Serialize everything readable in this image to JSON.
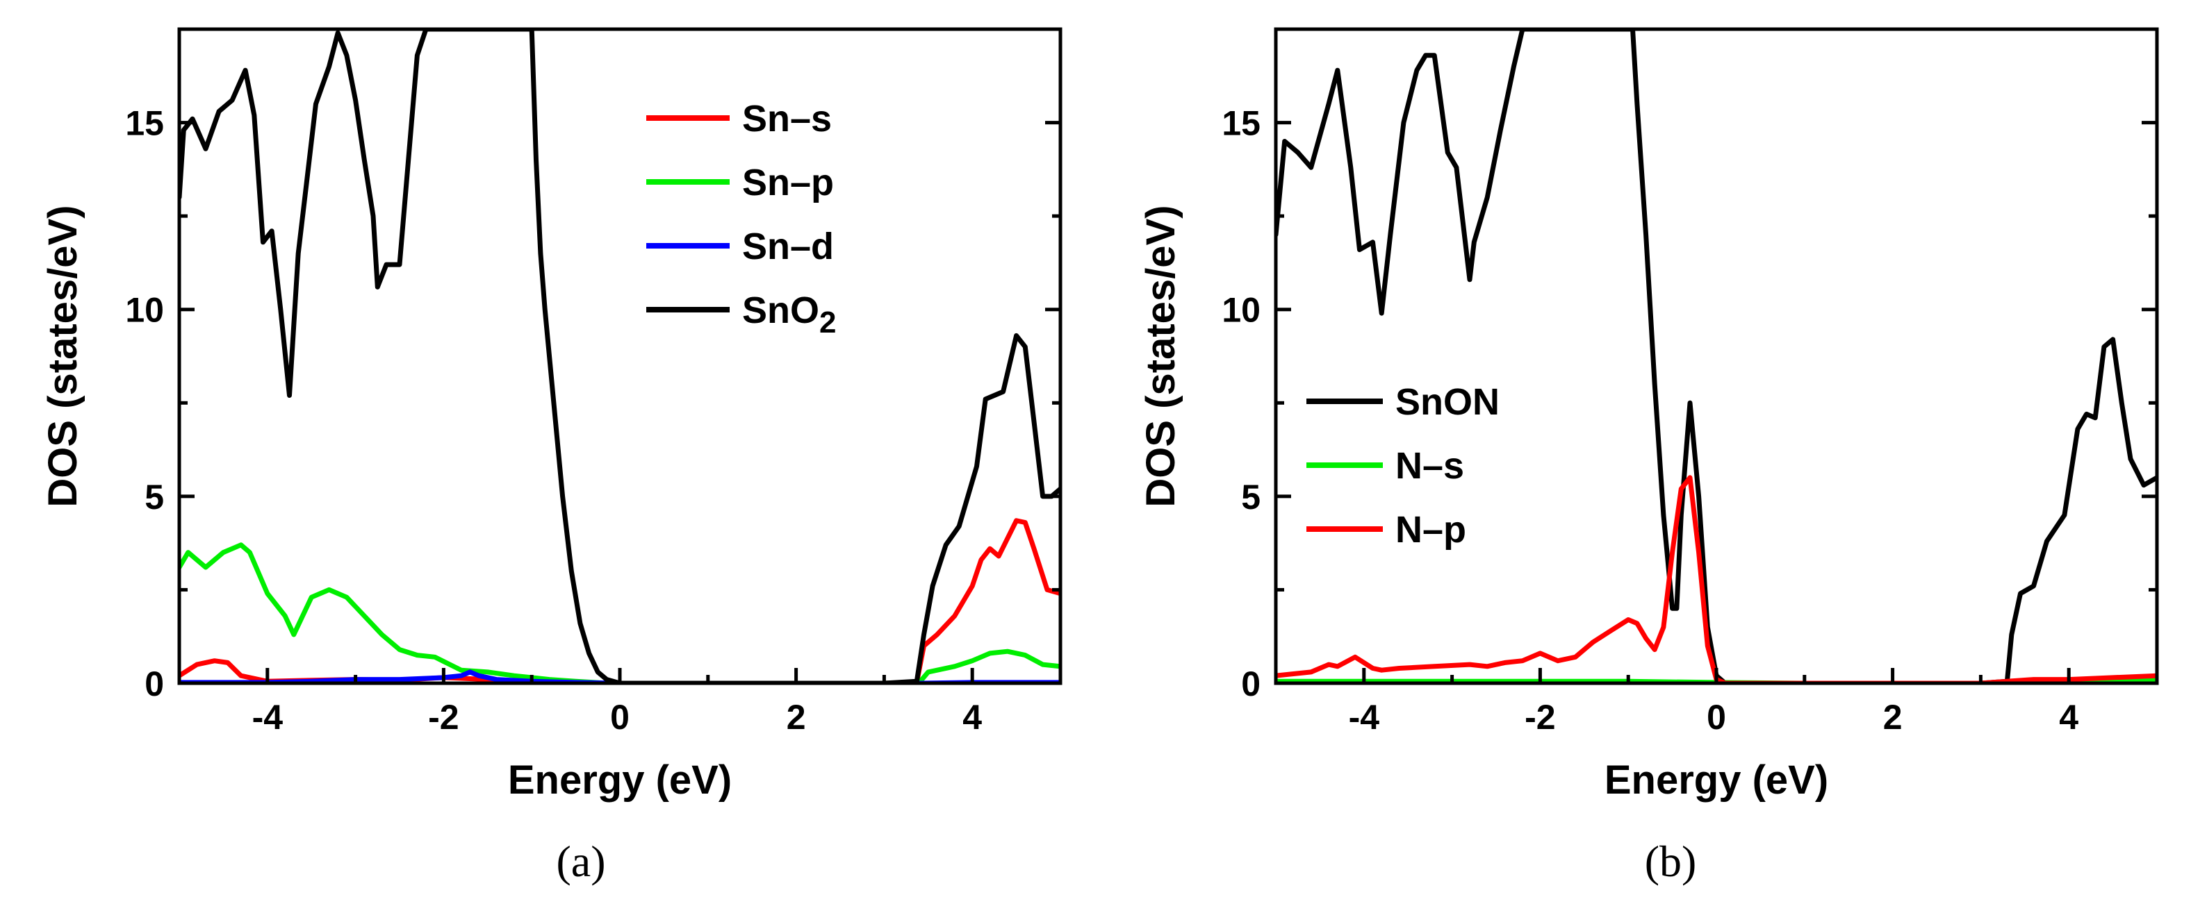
{
  "chart_data": [
    {
      "type": "line",
      "panel_label": "(a)",
      "xlabel": "Energy (eV)",
      "ylabel": "DOS (states/eV)",
      "xlim": [
        -5,
        5
      ],
      "ylim": [
        0,
        17.5
      ],
      "xticks": [
        -4,
        -2,
        0,
        2,
        4
      ],
      "yticks": [
        0,
        5,
        10,
        15
      ],
      "legend_position": "top-right",
      "series": [
        {
          "name": "Sn–s",
          "color": "#ff0000",
          "x": [
            -5,
            -4.8,
            -4.6,
            -4.45,
            -4.3,
            -4.0,
            -3.5,
            -3.0,
            -2.5,
            -2.0,
            -1.5,
            -1.0,
            -0.5,
            0,
            1,
            2,
            3,
            3.37,
            3.45,
            3.6,
            3.8,
            4.0,
            4.1,
            4.2,
            4.3,
            4.5,
            4.6,
            4.7,
            4.85,
            5
          ],
          "y": [
            0.2,
            0.5,
            0.6,
            0.55,
            0.2,
            0.05,
            0.08,
            0.1,
            0.08,
            0.15,
            0.1,
            0.05,
            0.02,
            0,
            0,
            0,
            0,
            0.02,
            1.0,
            1.3,
            1.8,
            2.6,
            3.3,
            3.6,
            3.4,
            4.35,
            4.3,
            3.6,
            2.5,
            2.4
          ]
        },
        {
          "name": "Sn–p",
          "color": "#00ee00",
          "x": [
            -5,
            -4.9,
            -4.7,
            -4.5,
            -4.3,
            -4.2,
            -4.0,
            -3.8,
            -3.7,
            -3.5,
            -3.3,
            -3.1,
            -2.9,
            -2.7,
            -2.5,
            -2.3,
            -2.1,
            -1.8,
            -1.5,
            -1.2,
            -0.8,
            -0.5,
            -0.2,
            0,
            1,
            2,
            3,
            3.4,
            3.5,
            3.8,
            4.0,
            4.2,
            4.4,
            4.6,
            4.8,
            5
          ],
          "y": [
            3.1,
            3.5,
            3.1,
            3.5,
            3.7,
            3.5,
            2.4,
            1.8,
            1.3,
            2.3,
            2.5,
            2.3,
            1.8,
            1.3,
            0.9,
            0.75,
            0.7,
            0.35,
            0.3,
            0.2,
            0.1,
            0.05,
            0.01,
            0,
            0,
            0,
            0,
            0.02,
            0.3,
            0.45,
            0.6,
            0.8,
            0.85,
            0.75,
            0.5,
            0.45
          ]
        },
        {
          "name": "Sn–d",
          "color": "#0000ff",
          "x": [
            -5,
            -4.5,
            -4.0,
            -3.5,
            -3.0,
            -2.5,
            -2.0,
            -1.8,
            -1.7,
            -1.6,
            -1.4,
            -1.0,
            -0.5,
            0,
            1,
            2,
            3,
            3.4,
            4.0,
            4.5,
            5
          ],
          "y": [
            0.02,
            0.02,
            0.02,
            0.05,
            0.1,
            0.1,
            0.15,
            0.2,
            0.3,
            0.2,
            0.1,
            0.05,
            0.02,
            0,
            0,
            0,
            0,
            0,
            0.02,
            0.02,
            0.02
          ]
        },
        {
          "name": "SnO2",
          "color": "#000000",
          "x": [
            -5,
            -4.95,
            -4.85,
            -4.7,
            -4.55,
            -4.4,
            -4.25,
            -4.15,
            -4.05,
            -3.95,
            -3.85,
            -3.75,
            -3.65,
            -3.55,
            -3.45,
            -3.3,
            -3.2,
            -3.1,
            -3.0,
            -2.9,
            -2.8,
            -2.75,
            -2.65,
            -2.5,
            -2.4,
            -2.3,
            -2.2,
            -1.0,
            -0.95,
            -0.9,
            -0.85,
            -0.75,
            -0.65,
            -0.55,
            -0.45,
            -0.35,
            -0.25,
            -0.15,
            0,
            1,
            2,
            3,
            3.37,
            3.45,
            3.55,
            3.7,
            3.85,
            4.05,
            4.15,
            4.25,
            4.35,
            4.5,
            4.6,
            4.7,
            4.8,
            4.9,
            5
          ],
          "y": [
            13.0,
            14.8,
            15.1,
            14.3,
            15.3,
            15.6,
            16.4,
            15.2,
            11.8,
            12.1,
            10.0,
            7.7,
            11.5,
            13.5,
            15.5,
            16.5,
            17.4,
            16.8,
            15.6,
            14.0,
            12.5,
            10.6,
            11.2,
            11.2,
            14.0,
            16.8,
            17.5,
            17.5,
            14.0,
            11.5,
            10.0,
            7.5,
            5.0,
            3.0,
            1.6,
            0.8,
            0.3,
            0.1,
            0,
            0,
            0,
            0,
            0.05,
            1.3,
            2.6,
            3.7,
            4.2,
            5.8,
            7.6,
            7.7,
            7.8,
            9.3,
            9.0,
            7.0,
            5.0,
            5.0,
            5.2
          ]
        }
      ]
    },
    {
      "type": "line",
      "panel_label": "(b)",
      "xlabel": "Energy (eV)",
      "ylabel": "DOS (states/eV)",
      "xlim": [
        -5,
        5
      ],
      "ylim": [
        0,
        17.5
      ],
      "xticks": [
        -4,
        -2,
        0,
        2,
        4
      ],
      "yticks": [
        0,
        5,
        10,
        15
      ],
      "legend_position": "center-left",
      "series": [
        {
          "name": "SnON",
          "color": "#000000",
          "x": [
            -5,
            -4.9,
            -4.75,
            -4.6,
            -4.4,
            -4.3,
            -4.15,
            -4.05,
            -3.9,
            -3.8,
            -3.7,
            -3.55,
            -3.4,
            -3.3,
            -3.2,
            -3.05,
            -2.95,
            -2.8,
            -2.75,
            -2.6,
            -2.45,
            -2.3,
            -2.2,
            -0.95,
            -0.9,
            -0.8,
            -0.7,
            -0.6,
            -0.5,
            -0.45,
            -0.4,
            -0.3,
            -0.2,
            -0.1,
            0,
            0.1,
            1,
            2,
            3,
            3.3,
            3.35,
            3.45,
            3.6,
            3.75,
            3.95,
            4.1,
            4.2,
            4.3,
            4.4,
            4.5,
            4.6,
            4.7,
            4.85,
            5
          ],
          "y": [
            12.0,
            14.5,
            14.2,
            13.8,
            15.5,
            16.4,
            13.8,
            11.6,
            11.8,
            9.9,
            12.0,
            15.0,
            16.4,
            16.8,
            16.8,
            14.2,
            13.8,
            10.8,
            11.8,
            13.0,
            14.8,
            16.5,
            17.5,
            17.5,
            15.5,
            12.0,
            8.0,
            4.5,
            2.0,
            2.0,
            4.5,
            7.5,
            5.0,
            1.5,
            0.2,
            0,
            0,
            0,
            0,
            0.05,
            1.3,
            2.4,
            2.6,
            3.8,
            4.5,
            6.8,
            7.2,
            7.1,
            9.0,
            9.2,
            7.5,
            6.0,
            5.3,
            5.5
          ]
        },
        {
          "name": "N–s",
          "color": "#00ee00",
          "x": [
            -5,
            -4,
            -3,
            -2,
            -1,
            0,
            1,
            2,
            3,
            4,
            5
          ],
          "y": [
            0.05,
            0.05,
            0.05,
            0.05,
            0.05,
            0.02,
            0,
            0,
            0,
            0.05,
            0.1
          ]
        },
        {
          "name": "N–p",
          "color": "#ff0000",
          "x": [
            -5,
            -4.6,
            -4.4,
            -4.3,
            -4.1,
            -3.9,
            -3.8,
            -3.6,
            -3.2,
            -2.8,
            -2.6,
            -2.4,
            -2.2,
            -2.0,
            -1.8,
            -1.6,
            -1.4,
            -1.2,
            -1.0,
            -0.9,
            -0.8,
            -0.7,
            -0.6,
            -0.5,
            -0.4,
            -0.3,
            -0.2,
            -0.1,
            0,
            0.1,
            1,
            2,
            3,
            3.3,
            3.6,
            4.0,
            4.5,
            5
          ],
          "y": [
            0.2,
            0.3,
            0.5,
            0.45,
            0.7,
            0.4,
            0.35,
            0.4,
            0.45,
            0.5,
            0.45,
            0.55,
            0.6,
            0.8,
            0.6,
            0.7,
            1.1,
            1.4,
            1.7,
            1.6,
            1.2,
            0.9,
            1.5,
            3.5,
            5.2,
            5.5,
            3.5,
            1.0,
            0.1,
            0,
            0,
            0,
            0,
            0.05,
            0.1,
            0.1,
            0.15,
            0.2
          ]
        }
      ]
    }
  ]
}
